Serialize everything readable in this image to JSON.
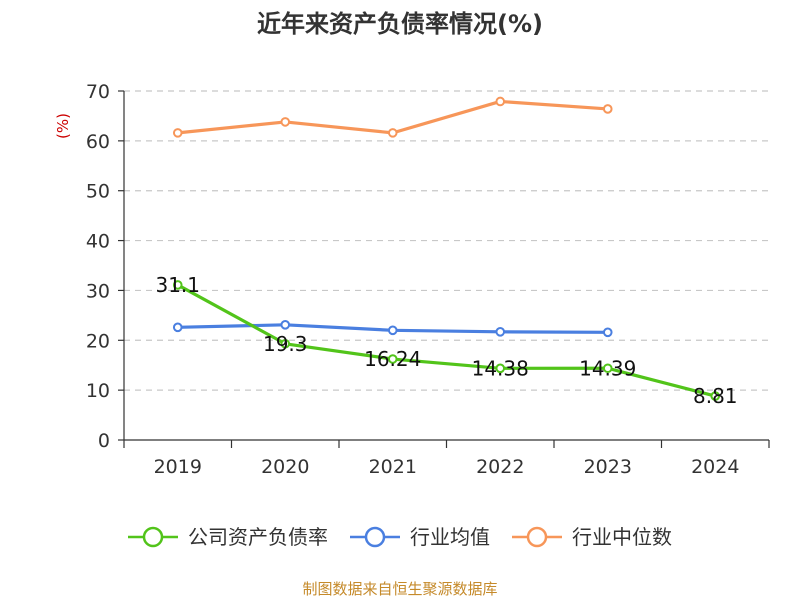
{
  "title": "近年来资产负债率情况(%)",
  "source": "制图数据来自恒生聚源数据库",
  "chart_data": {
    "type": "line",
    "title": "近年来资产负债率情况(%)",
    "ylabel": "(%)",
    "xlabel": "",
    "categories": [
      "2019",
      "2020",
      "2021",
      "2022",
      "2023",
      "2024"
    ],
    "ylim": [
      0,
      70
    ],
    "yticks": [
      0,
      10,
      20,
      30,
      40,
      50,
      60,
      70
    ],
    "grid": true,
    "legend_position": "bottom",
    "series": [
      {
        "name": "公司资产负债率",
        "color": "#52c41a",
        "values": [
          31.1,
          19.3,
          16.24,
          14.38,
          14.39,
          8.81
        ],
        "labels": [
          "31.1",
          "19.3",
          "16.24",
          "14.38",
          "14.39",
          "8.81"
        ]
      },
      {
        "name": "行业均值",
        "color": "#4a7fe0",
        "values": [
          22.6,
          23.1,
          22.0,
          21.7,
          21.6,
          null
        ],
        "labels": null
      },
      {
        "name": "行业中位数",
        "color": "#f79659",
        "values": [
          61.6,
          63.8,
          61.6,
          67.9,
          66.4,
          null
        ],
        "labels": null
      }
    ]
  }
}
